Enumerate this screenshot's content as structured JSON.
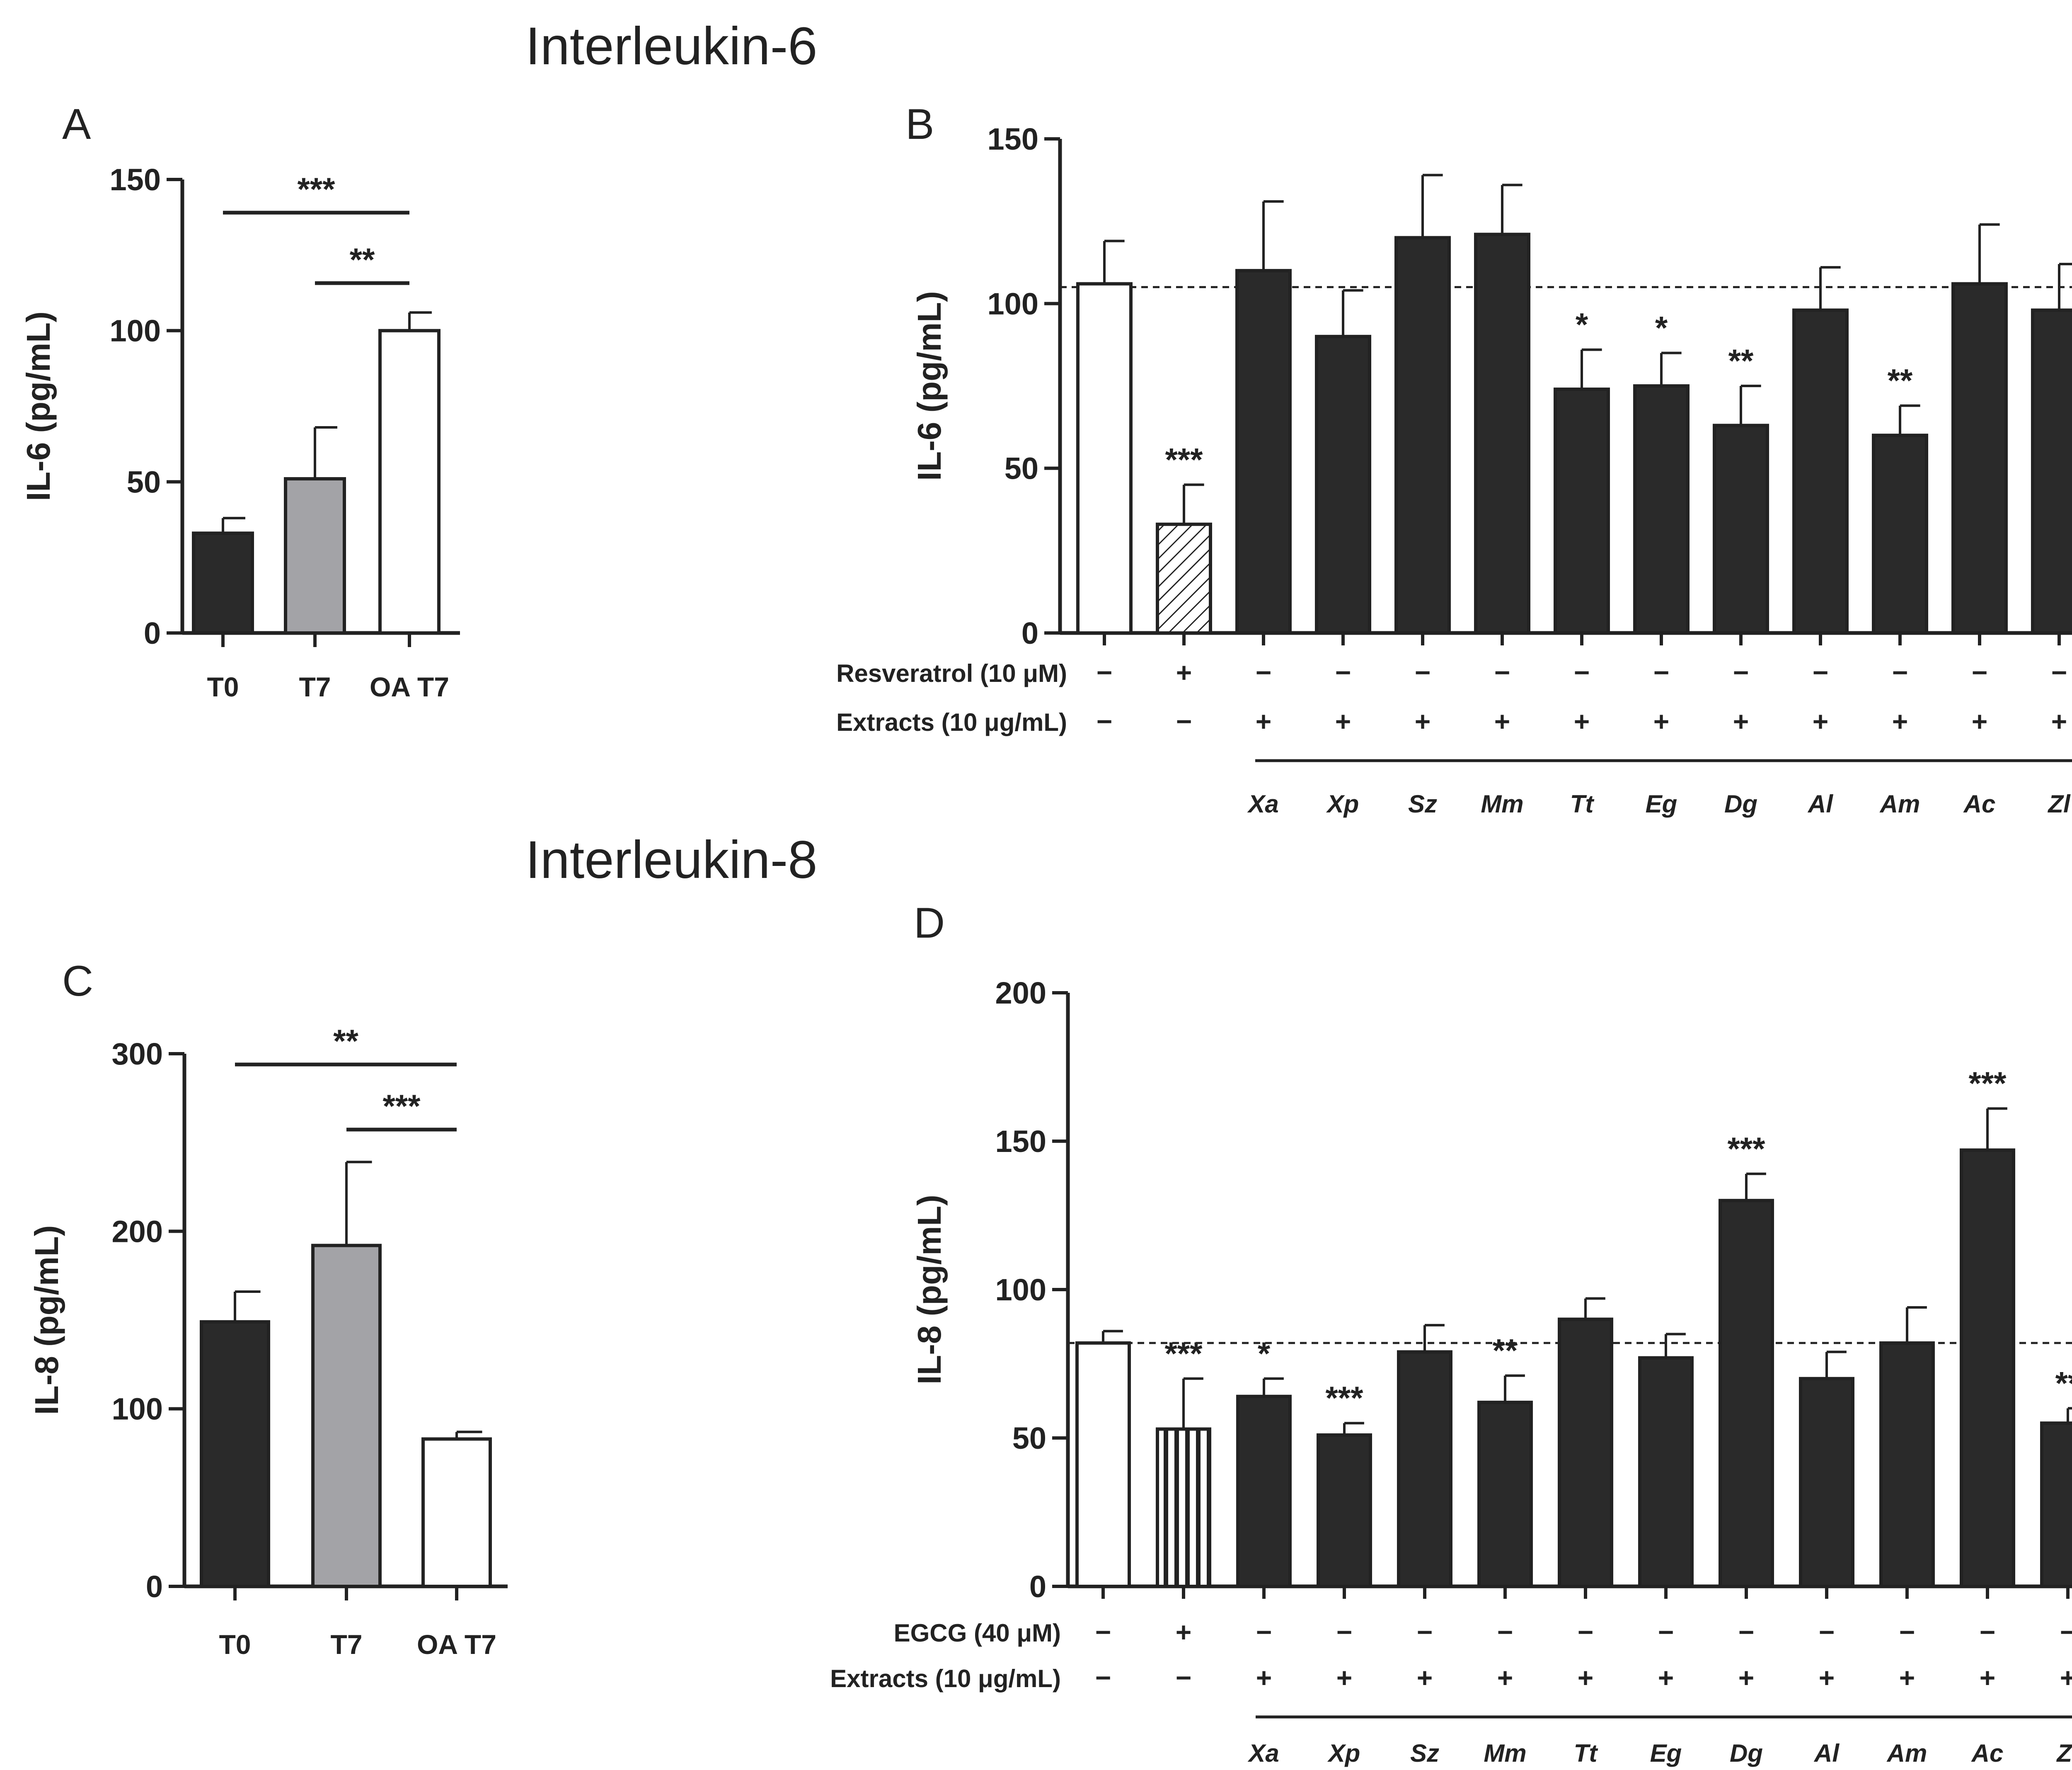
{
  "figure": {
    "title_il6": "Interleukin-6",
    "title_il8": "Interleukin-8"
  },
  "chart_data": [
    {
      "panel": "A",
      "type": "bar",
      "ylabel": "IL-6 (pg/mL)",
      "ylim": [
        0,
        150
      ],
      "yticks": [
        "0",
        "50",
        "100",
        "150"
      ],
      "categories": [
        "T0",
        "T7",
        "OA T7"
      ],
      "values": [
        33,
        51,
        100
      ],
      "errors": [
        5,
        17,
        6
      ],
      "fills": [
        "#2a2a2a",
        "#a3a3a7",
        "#ffffff"
      ],
      "brackets": [
        {
          "from": 0,
          "to": 2,
          "label": "***"
        },
        {
          "from": 1,
          "to": 2,
          "label": "**"
        }
      ]
    },
    {
      "panel": "B",
      "type": "bar",
      "ylabel": "IL-6 (pg/mL)",
      "ylim": [
        0,
        150
      ],
      "yticks": [
        "0",
        "50",
        "100",
        "150"
      ],
      "reference_line": 105,
      "values": [
        106,
        33,
        110,
        90,
        120,
        121,
        74,
        75,
        63,
        98,
        60,
        106,
        98
      ],
      "errors": [
        13,
        12,
        21,
        14,
        19,
        15,
        12,
        10,
        12,
        13,
        9,
        18,
        14
      ],
      "fills": [
        "white",
        "hatch",
        "dark",
        "dark",
        "dark",
        "dark",
        "dark",
        "dark",
        "dark",
        "dark",
        "dark",
        "dark",
        "dark"
      ],
      "significance": [
        "",
        "***",
        "",
        "",
        "",
        "",
        "*",
        "*",
        "**",
        "",
        "**",
        "",
        ""
      ],
      "treatment_rows": [
        {
          "label": "Resveratrol (10 μM)",
          "symbols": [
            "−",
            "+",
            "−",
            "−",
            "−",
            "−",
            "−",
            "−",
            "−",
            "−",
            "−",
            "−",
            "−"
          ]
        },
        {
          "label": "Extracts (10 μg/mL)",
          "symbols": [
            "−",
            "−",
            "+",
            "+",
            "+",
            "+",
            "+",
            "+",
            "+",
            "+",
            "+",
            "+",
            "+"
          ]
        }
      ],
      "extract_labels": [
        "Xa",
        "Xp",
        "Sz",
        "Mm",
        "Tt",
        "Eg",
        "Dg",
        "Al",
        "Am",
        "Ac",
        "Zl"
      ]
    },
    {
      "panel": "C",
      "type": "bar",
      "ylabel": "IL-8 (pg/mL)",
      "ylim": [
        0,
        300
      ],
      "yticks": [
        "0",
        "100",
        "200",
        "300"
      ],
      "categories": [
        "T0",
        "T7",
        "OA T7"
      ],
      "values": [
        149,
        192,
        83
      ],
      "errors": [
        17,
        47,
        4
      ],
      "fills": [
        "#2a2a2a",
        "#a3a3a7",
        "#ffffff"
      ],
      "brackets": [
        {
          "from": 0,
          "to": 2,
          "label": "**"
        },
        {
          "from": 1,
          "to": 2,
          "label": "***"
        }
      ]
    },
    {
      "panel": "D",
      "type": "bar",
      "ylabel": "IL-8 (pg/mL)",
      "ylim": [
        0,
        200
      ],
      "yticks": [
        "0",
        "50",
        "100",
        "150",
        "200"
      ],
      "reference_line": 82,
      "values": [
        82,
        53,
        64,
        51,
        79,
        62,
        90,
        77,
        130,
        70,
        82,
        147,
        55
      ],
      "errors": [
        4,
        17,
        6,
        4,
        9,
        9,
        7,
        8,
        9,
        9,
        12,
        14,
        5
      ],
      "fills": [
        "white",
        "vstripe",
        "dark",
        "dark",
        "dark",
        "dark",
        "dark",
        "dark",
        "dark",
        "dark",
        "dark",
        "dark",
        "dark"
      ],
      "significance": [
        "",
        "***",
        "*",
        "***",
        "",
        "**",
        "",
        "",
        "***",
        "",
        "",
        "***",
        "**"
      ],
      "treatment_rows": [
        {
          "label": "EGCG (40 μM)",
          "symbols": [
            "−",
            "+",
            "−",
            "−",
            "−",
            "−",
            "−",
            "−",
            "−",
            "−",
            "−",
            "−",
            "−"
          ]
        },
        {
          "label": "Extracts (10 μg/mL)",
          "symbols": [
            "−",
            "−",
            "+",
            "+",
            "+",
            "+",
            "+",
            "+",
            "+",
            "+",
            "+",
            "+",
            "+"
          ]
        }
      ],
      "extract_labels": [
        "Xa",
        "Xp",
        "Sz",
        "Mm",
        "Tt",
        "Eg",
        "Dg",
        "Al",
        "Am",
        "Ac",
        "Zl"
      ]
    }
  ]
}
